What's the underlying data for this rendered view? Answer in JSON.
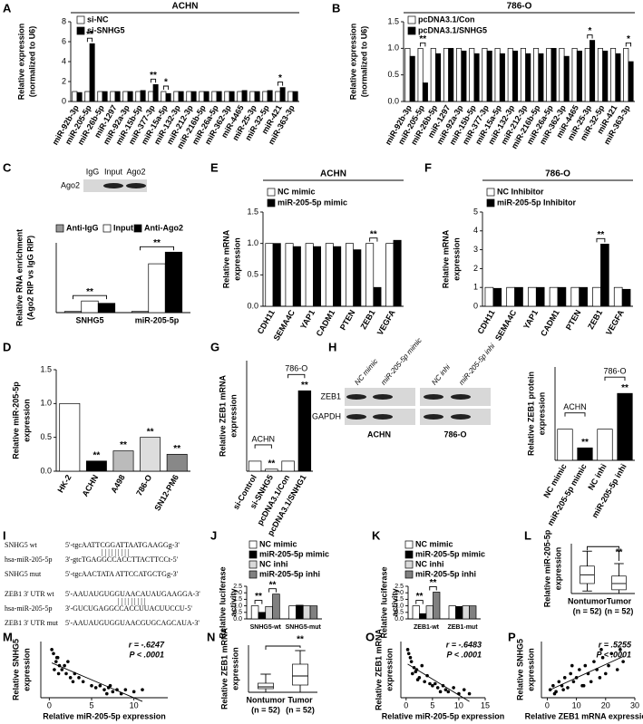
{
  "chart_data": [
    {
      "panel": "A",
      "type": "bar",
      "title": "ACHN",
      "ylabel": [
        "Relative expression",
        "(normalized to U6)"
      ],
      "categories": [
        "miR-92b-3p",
        "miR-205-5p",
        "miR-26b-5p",
        "miR-1297",
        "miR-92a-3p",
        "miR-15b-5p",
        "miR-377-3p",
        "miR-15a-5p",
        "miR-132-3p",
        "miR-212-3p",
        "miR-216b-5p",
        "miR-26a-5p",
        "miR-362-3p",
        "miR-4465",
        "miR-25-3p",
        "miR-32-5p",
        "miR-421",
        "miR-363-3p"
      ],
      "series": [
        {
          "name": "si-NC",
          "color": "#ffffff",
          "values": [
            1,
            1,
            1,
            1,
            1,
            1,
            1,
            1,
            1,
            1,
            1,
            1,
            1,
            1,
            1,
            1,
            1,
            1
          ]
        },
        {
          "name": "si-SNHG5",
          "color": "#000000",
          "values": [
            0.9,
            5.8,
            1.0,
            1.0,
            1.0,
            1.1,
            1.7,
            0.8,
            1.0,
            1.0,
            1.0,
            1.0,
            1.0,
            1.1,
            1.0,
            1.1,
            1.4,
            1.0
          ]
        }
      ],
      "significance": [
        null,
        "**",
        null,
        null,
        null,
        null,
        "**",
        "*",
        null,
        null,
        null,
        null,
        null,
        null,
        null,
        null,
        "*",
        null
      ],
      "ylim": [
        0,
        8
      ],
      "yticks": [
        0,
        2,
        4,
        6,
        8
      ]
    },
    {
      "panel": "B",
      "type": "bar",
      "title": "786-O",
      "ylabel": [
        "Relative expression",
        "(normalized to U6)"
      ],
      "categories": [
        "miR-92b-3p",
        "miR-205-5p",
        "miR-26b-5p",
        "miR-1297",
        "miR-92a-3p",
        "miR-15b-5p",
        "miR-377-3p",
        "miR-15a-5p",
        "miR-132-3p",
        "miR-212-3p",
        "miR-216b-5p",
        "miR-26a-5p",
        "miR-362-3p",
        "miR-4465",
        "miR-25-3p",
        "miR-32-5p",
        "miR-421",
        "miR-363-3p"
      ],
      "series": [
        {
          "name": "pcDNA3.1/Con",
          "color": "#ffffff",
          "values": [
            1,
            1,
            1,
            1,
            1,
            1,
            1,
            1,
            1,
            1,
            1,
            1,
            1,
            1,
            1,
            1,
            1,
            1
          ]
        },
        {
          "name": "pcDNA3.1/SNHG5",
          "color": "#000000",
          "values": [
            0.85,
            0.35,
            0.9,
            1.0,
            0.95,
            0.9,
            0.95,
            0.9,
            0.95,
            0.9,
            0.9,
            1.0,
            0.85,
            0.95,
            1.15,
            0.95,
            0.9,
            0.75
          ]
        }
      ],
      "significance": [
        null,
        "**",
        null,
        null,
        null,
        null,
        null,
        null,
        null,
        null,
        null,
        null,
        null,
        null,
        "*",
        null,
        null,
        "*"
      ],
      "ylim": [
        0,
        1.5
      ],
      "yticks": [
        {
          "value": 0,
          "label": "0.0"
        },
        0.5,
        {
          "value": 1,
          "label": "1.0"
        },
        1.5
      ]
    },
    {
      "panel": "C",
      "type": "bar",
      "ylabel": [
        "Relative RNA enrichment",
        "(Ago2 RIP vs IgG RIP)"
      ],
      "blot": {
        "column_labels": [
          "IgG",
          "Input",
          "Ago2"
        ],
        "row_labels": [
          "Ago2"
        ]
      },
      "categories": [
        "SNHG5",
        "miR-205-5p"
      ],
      "series": [
        {
          "name": "Anti-IgG",
          "color": "#999999",
          "values": [
            1,
            1
          ]
        },
        {
          "name": "Input",
          "color": "#ffffff",
          "values": [
            10,
            42
          ]
        },
        {
          "name": "Anti-Ago2",
          "color": "#000000",
          "values": [
            8,
            52
          ],
          "significance": [
            "**",
            "**"
          ]
        }
      ],
      "ylim": [
        0,
        60
      ]
    },
    {
      "panel": "D",
      "type": "bar",
      "ylabel": [
        "Relative miR-205-5p",
        "expression"
      ],
      "categories": [
        "HK-2",
        "ACHN",
        "A498",
        "786-O",
        "SN12-PM6"
      ],
      "values": [
        1.0,
        0.15,
        0.3,
        0.5,
        0.25
      ],
      "colors": [
        "#ffffff",
        "#000000",
        "#bbbbbb",
        "#dddddd",
        "#888888"
      ],
      "significance": [
        null,
        "**",
        "**",
        "**",
        "**"
      ],
      "ylim": [
        0,
        1.5
      ],
      "yticks": [
        {
          "value": 0,
          "label": "0.0"
        },
        0.5,
        {
          "value": 1,
          "label": "1.0"
        },
        1.5
      ]
    },
    {
      "panel": "E",
      "type": "bar",
      "title": "ACHN",
      "ylabel": [
        "Relative mRNA",
        "expression"
      ],
      "categories": [
        "CDH11",
        "SEMA4C",
        "YAP1",
        "CADM1",
        "PTEN",
        "ZEB1",
        "VEGFA"
      ],
      "series": [
        {
          "name": "NC mimic",
          "color": "#ffffff",
          "values": [
            1,
            1,
            1,
            1,
            1,
            1,
            1
          ]
        },
        {
          "name": "miR-205-5p mimic",
          "color": "#000000",
          "values": [
            1.0,
            0.95,
            0.95,
            0.95,
            0.9,
            0.3,
            1.05
          ]
        }
      ],
      "significance": [
        null,
        null,
        null,
        null,
        null,
        "**",
        null
      ],
      "ylim": [
        0,
        1.5
      ],
      "yticks": [
        {
          "value": 0,
          "label": "0.0"
        },
        0.5,
        {
          "value": 1,
          "label": "1.0"
        },
        1.5
      ]
    },
    {
      "panel": "F",
      "type": "bar",
      "title": "786-O",
      "ylabel": [
        "Relative mRNA",
        "expression"
      ],
      "categories": [
        "CDH11",
        "SEMA4C",
        "YAP1",
        "CADM1",
        "PTEN",
        "ZEB1",
        "VEGFA"
      ],
      "series": [
        {
          "name": "NC Inhibitor",
          "color": "#ffffff",
          "values": [
            1,
            1,
            1,
            1,
            1,
            1,
            1
          ]
        },
        {
          "name": "miR-205-5p Inhibitor",
          "color": "#000000",
          "values": [
            0.95,
            1.0,
            1.0,
            1.0,
            1.0,
            3.3,
            0.9
          ]
        }
      ],
      "significance": [
        null,
        null,
        null,
        null,
        null,
        "**",
        null
      ],
      "ylim": [
        0,
        5
      ],
      "yticks": [
        0,
        1,
        2,
        3,
        4,
        5
      ]
    },
    {
      "panel": "G",
      "type": "bar",
      "ylabel": [
        "Relative ZEB1 mRNA",
        "expression"
      ],
      "categories": [
        "si-Control",
        "si-SNHG5",
        "pcDNA3.1/Con",
        "pcDNA3.1/SNHG1"
      ],
      "values": [
        1,
        0.2,
        1,
        8
      ],
      "colors": [
        "#ffffff",
        "#ffffff",
        "#ffffff",
        "#000000"
      ],
      "significance": [
        null,
        "**",
        null,
        "**"
      ],
      "group_labels": [
        "ACHN",
        "786-O"
      ],
      "ylim": [
        0,
        11
      ]
    },
    {
      "panel": "H",
      "type": "bar",
      "ylabel": [
        "Relative ZEB1 protein",
        "expression"
      ],
      "blot": {
        "column_labels": [
          "NC mimic",
          "miR-205-5p mimic",
          "NC inhi",
          "miR-205-5p inhi"
        ],
        "row_labels": [
          "ZEB1",
          "GAPDH"
        ],
        "group_labels": [
          "ACHN",
          "786-O"
        ]
      },
      "categories": [
        "NC mimic",
        "miR-205-5p mimic",
        "NC inhi",
        "miR-205-5p inhi"
      ],
      "values": [
        1.0,
        0.4,
        1.0,
        2.15
      ],
      "colors": [
        "#ffffff",
        "#000000",
        "#ffffff",
        "#000000"
      ],
      "significance": [
        null,
        "**",
        null,
        "**"
      ],
      "group_labels": [
        "ACHN",
        "786-O"
      ],
      "ylim": [
        0,
        3
      ]
    },
    {
      "panel": "J",
      "type": "bar",
      "ylabel": [
        "Relative luciferase",
        "activity"
      ],
      "categories": [
        "SNHG5-wt",
        "SNHG5-mut"
      ],
      "series": [
        {
          "name": "NC mimic",
          "color": "#ffffff",
          "values": [
            1.0,
            1.0
          ]
        },
        {
          "name": "miR-205-5p mimic",
          "color": "#000000",
          "values": [
            0.5,
            1.05
          ],
          "significance": [
            "**",
            null
          ]
        },
        {
          "name": "NC inhi",
          "color": "#d9d9d9",
          "values": [
            0.95,
            1.0
          ]
        },
        {
          "name": "miR-205-5p inhi",
          "color": "#808080",
          "values": [
            1.9,
            1.0
          ],
          "significance": [
            "**",
            null
          ]
        }
      ],
      "ylim": [
        0,
        2.5
      ],
      "yticks": [
        {
          "value": 0,
          "label": "0.0"
        },
        0.5,
        {
          "value": 1,
          "label": "1.0"
        },
        1.5,
        {
          "value": 2,
          "label": "2.0"
        },
        2.5
      ]
    },
    {
      "panel": "K",
      "type": "bar",
      "ylabel": [
        "Relative luciferase",
        "activity"
      ],
      "categories": [
        "ZEB1-wt",
        "ZEB1-mut"
      ],
      "series": [
        {
          "name": "NC mimic",
          "color": "#ffffff",
          "values": [
            1.0,
            1.0
          ]
        },
        {
          "name": "miR-205-5p mimic",
          "color": "#000000",
          "values": [
            0.4,
            0.95
          ],
          "significance": [
            "**",
            null
          ]
        },
        {
          "name": "NC inhi",
          "color": "#d9d9d9",
          "values": [
            1.0,
            1.0
          ]
        },
        {
          "name": "miR-205-5p inhi",
          "color": "#808080",
          "values": [
            2.05,
            1.0
          ],
          "significance": [
            "**",
            null
          ]
        }
      ],
      "ylim": [
        0,
        2.5
      ],
      "yticks": [
        {
          "value": 0,
          "label": "0.0"
        },
        0.5,
        {
          "value": 1,
          "label": "1.0"
        },
        1.5,
        {
          "value": 2,
          "label": "2.0"
        },
        2.5
      ]
    },
    {
      "panel": "L",
      "type": "box",
      "ylabel": [
        "Relative miR-205-5p",
        "expression"
      ],
      "categories": [
        "Nontumor",
        "Tumor"
      ],
      "n_labels": [
        "(n = 52)",
        "(n = 52)"
      ],
      "values": [
        [
          1,
          4,
          7.5,
          11,
          17
        ],
        [
          0,
          1.5,
          4,
          7,
          12
        ]
      ],
      "significance": [
        null,
        "**"
      ],
      "ylim": [
        0,
        20
      ]
    },
    {
      "panel": "M",
      "type": "scatter",
      "ylabel": [
        "Relative SNHG5",
        "expression"
      ],
      "xlabel": "Relative miR-205-5p expression",
      "annotations": [
        "r = -.6247",
        "P < .0001"
      ],
      "x": [
        0.5,
        0.8,
        1,
        1.2,
        1.5,
        2,
        2.2,
        2.5,
        3,
        0.3,
        0.6,
        1.8,
        4,
        5,
        5.5,
        6,
        6.5,
        7,
        7.5,
        8,
        8.5,
        9,
        10,
        11,
        1.1,
        2.8,
        3.5,
        0.9,
        6.8,
        7.2
      ],
      "y": [
        11,
        9,
        10,
        8,
        7,
        6,
        9,
        5,
        6,
        12,
        7,
        8,
        4,
        3,
        2.5,
        3,
        2,
        2.5,
        1.5,
        2,
        1,
        2,
        1.5,
        2,
        6,
        4,
        5,
        10,
        1,
        3
      ],
      "xlim": [
        -1,
        14
      ],
      "xticks": [
        0,
        5,
        10
      ],
      "ylim": [
        0,
        14
      ]
    },
    {
      "panel": "N",
      "type": "box",
      "ylabel": [
        "Relative ZEB1 mRNA",
        "expression"
      ],
      "categories": [
        "Nontumor",
        "Tumor"
      ],
      "n_labels": [
        "(n = 52)",
        "(n = 52)"
      ],
      "values": [
        [
          0,
          2,
          3,
          5,
          10
        ],
        [
          0,
          4,
          9,
          15.5,
          23
        ]
      ],
      "significance": [
        null,
        "**"
      ],
      "ylim": [
        0,
        26
      ]
    },
    {
      "panel": "O",
      "type": "scatter",
      "ylabel": [
        "Relative ZEB1 mRNA",
        "expression"
      ],
      "xlabel": "Relative miR-205-5p expression",
      "annotations": [
        "r = -.6483",
        "P < .0001"
      ],
      "x": [
        0.5,
        1,
        1.5,
        2,
        0.8,
        1.2,
        2.5,
        3,
        3.5,
        4,
        5,
        5.5,
        6,
        7,
        7.5,
        8,
        9,
        10,
        11,
        12,
        0.3,
        1.8,
        2.2,
        4.5,
        6.5
      ],
      "y": [
        22,
        18,
        15,
        14,
        20,
        12,
        10,
        16,
        8,
        11,
        6,
        7,
        5,
        6,
        4,
        3,
        5,
        2,
        4,
        2,
        24,
        13,
        9,
        7,
        3
      ],
      "xlim": [
        -1,
        15
      ],
      "xticks": [
        0,
        5,
        10,
        15
      ],
      "ylim": [
        0,
        28
      ]
    },
    {
      "panel": "P",
      "type": "scatter",
      "ylabel": [
        "Relative SNHG5",
        "expression"
      ],
      "xlabel": "Relative ZEB1 mRNA expression",
      "annotations": [
        "r = .5255",
        "P < .0001"
      ],
      "x": [
        1,
        2,
        3,
        4,
        5,
        6,
        7,
        8,
        9,
        10,
        11,
        12,
        13,
        14,
        15,
        16,
        17,
        18,
        19,
        20,
        21,
        22,
        24,
        25,
        26,
        2.5,
        5.5,
        8.5,
        12.5,
        18.5
      ],
      "y": [
        2,
        3,
        1.5,
        4,
        3,
        5,
        2.5,
        6,
        4,
        5,
        7,
        3,
        8,
        6,
        4,
        9,
        7,
        5,
        10,
        6,
        8,
        11,
        7,
        12,
        9,
        1,
        2,
        8,
        3,
        12
      ],
      "xlim": [
        -2,
        30
      ],
      "xticks": [
        0,
        10,
        20,
        30
      ],
      "ylim": [
        0,
        14
      ]
    }
  ],
  "sequence_panel": {
    "panel": "I",
    "rows": [
      {
        "label": "SNHG5 wt",
        "sequence": "5'-tgcAATTCGGATTAATGAAGGg-3'"
      },
      {
        "label": "hsa-miR-205-5p",
        "sequence": "3'-gtcTGAGGCCACCTTACTTCCt-5'"
      },
      {
        "label": "SNHG5 mut",
        "sequence": "5'-tgcAACTATA ATTCCATGCTGg-3'"
      },
      {
        "label": "ZEB1 3' UTR wt",
        "sequence": "5'-AAUAUGUGGUAACAUAUGAAGGA-3'"
      },
      {
        "label": "hsa-miR-205-5p",
        "sequence": "3'-GUCUGAGGCCACCUUACUUCCU-5'"
      },
      {
        "label": "ZEB1 3' UTR mut",
        "sequence": "5'-AAUAUGUGGUAACGUGCAGCAUA-3'"
      }
    ]
  }
}
